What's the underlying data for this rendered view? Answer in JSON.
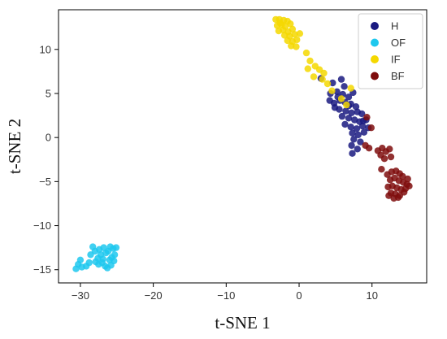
{
  "chart_data": {
    "type": "scatter",
    "title": "",
    "xlabel": "t-SNE 1",
    "ylabel": "t-SNE 2",
    "xlim": [
      -33,
      17.5
    ],
    "ylim": [
      -16.5,
      14.5
    ],
    "xticks": [
      -30,
      -20,
      -10,
      0,
      10
    ],
    "yticks": [
      -15,
      -10,
      -5,
      0,
      5,
      10
    ],
    "grid": false,
    "legend_position": "top-right",
    "series": [
      {
        "name": "H",
        "color": "#1a1a80",
        "points": [
          [
            3.0,
            6.7
          ],
          [
            4.6,
            6.2
          ],
          [
            5.8,
            6.6
          ],
          [
            6.2,
            5.8
          ],
          [
            4.3,
            5.0
          ],
          [
            5.2,
            5.2
          ],
          [
            6.0,
            4.9
          ],
          [
            6.8,
            4.6
          ],
          [
            7.4,
            5.1
          ],
          [
            4.2,
            4.2
          ],
          [
            4.8,
            3.9
          ],
          [
            5.6,
            4.2
          ],
          [
            6.3,
            4.0
          ],
          [
            7.1,
            3.8
          ],
          [
            7.8,
            3.5
          ],
          [
            4.9,
            3.4
          ],
          [
            5.5,
            3.2
          ],
          [
            6.4,
            3.0
          ],
          [
            7.2,
            2.8
          ],
          [
            8.0,
            2.9
          ],
          [
            8.6,
            2.7
          ],
          [
            5.9,
            2.4
          ],
          [
            6.8,
            2.2
          ],
          [
            7.6,
            2.0
          ],
          [
            8.3,
            1.8
          ],
          [
            9.2,
            2.0
          ],
          [
            6.3,
            1.5
          ],
          [
            7.1,
            1.2
          ],
          [
            7.9,
            1.0
          ],
          [
            8.7,
            1.3
          ],
          [
            7.3,
            0.5
          ],
          [
            8.1,
            0.3
          ],
          [
            8.9,
            0.6
          ],
          [
            7.5,
            -0.2
          ],
          [
            8.4,
            -0.5
          ],
          [
            7.2,
            -0.9
          ],
          [
            8.0,
            -1.3
          ],
          [
            7.3,
            -1.8
          ],
          [
            6.8,
            3.6
          ],
          [
            5.3,
            4.6
          ],
          [
            8.8,
            1.9
          ],
          [
            9.5,
            1.1
          ]
        ]
      },
      {
        "name": "OF",
        "color": "#1ec8ee",
        "points": [
          [
            -30.6,
            -14.9
          ],
          [
            -30.3,
            -14.4
          ],
          [
            -29.8,
            -14.7
          ],
          [
            -30.0,
            -13.9
          ],
          [
            -29.2,
            -14.6
          ],
          [
            -28.6,
            -13.3
          ],
          [
            -28.3,
            -12.4
          ],
          [
            -28.0,
            -12.9
          ],
          [
            -27.6,
            -13.7
          ],
          [
            -27.4,
            -12.7
          ],
          [
            -27.2,
            -13.3
          ],
          [
            -27.0,
            -14.2
          ],
          [
            -26.8,
            -12.5
          ],
          [
            -26.6,
            -14.6
          ],
          [
            -26.5,
            -13.1
          ],
          [
            -26.2,
            -12.9
          ],
          [
            -26.0,
            -13.9
          ],
          [
            -25.9,
            -12.4
          ],
          [
            -25.7,
            -13.6
          ],
          [
            -25.5,
            -12.6
          ],
          [
            -25.4,
            -14.0
          ],
          [
            -25.3,
            -13.3
          ],
          [
            -25.1,
            -12.5
          ],
          [
            -27.9,
            -14.1
          ],
          [
            -26.9,
            -13.8
          ],
          [
            -26.3,
            -14.8
          ],
          [
            -25.8,
            -14.5
          ],
          [
            -27.5,
            -14.4
          ],
          [
            -28.8,
            -14.2
          ]
        ]
      },
      {
        "name": "IF",
        "color": "#f5d800",
        "points": [
          [
            -3.2,
            13.4
          ],
          [
            -2.7,
            13.4
          ],
          [
            -2.1,
            13.3
          ],
          [
            -1.6,
            13.2
          ],
          [
            -3.0,
            12.7
          ],
          [
            -2.4,
            12.8
          ],
          [
            -1.9,
            12.6
          ],
          [
            -1.2,
            12.9
          ],
          [
            -2.8,
            12.1
          ],
          [
            -2.2,
            12.2
          ],
          [
            -1.5,
            12.0
          ],
          [
            -0.9,
            12.3
          ],
          [
            -2.0,
            11.6
          ],
          [
            -1.3,
            11.5
          ],
          [
            -0.6,
            11.7
          ],
          [
            -1.6,
            11.0
          ],
          [
            -0.9,
            10.9
          ],
          [
            -0.3,
            11.1
          ],
          [
            -1.1,
            10.4
          ],
          [
            -0.4,
            10.3
          ],
          [
            1.0,
            9.6
          ],
          [
            1.5,
            8.7
          ],
          [
            2.2,
            8.1
          ],
          [
            1.2,
            7.8
          ],
          [
            2.8,
            7.7
          ],
          [
            3.4,
            7.3
          ],
          [
            2.0,
            6.9
          ],
          [
            3.2,
            6.6
          ],
          [
            3.9,
            6.1
          ],
          [
            4.5,
            5.3
          ],
          [
            5.8,
            4.4
          ],
          [
            6.5,
            3.7
          ],
          [
            7.1,
            5.6
          ],
          [
            0.1,
            11.8
          ],
          [
            -2.6,
            13.0
          ]
        ]
      },
      {
        "name": "BF",
        "color": "#7f0d0d",
        "points": [
          [
            9.3,
            2.3
          ],
          [
            9.9,
            1.1
          ],
          [
            9.1,
            -0.9
          ],
          [
            9.6,
            -1.2
          ],
          [
            10.8,
            -1.5
          ],
          [
            11.4,
            -1.2
          ],
          [
            11.9,
            -1.6
          ],
          [
            12.4,
            -1.3
          ],
          [
            11.2,
            -2.0
          ],
          [
            11.7,
            -2.4
          ],
          [
            12.6,
            -2.2
          ],
          [
            11.3,
            -3.6
          ],
          [
            12.1,
            -4.2
          ],
          [
            12.7,
            -3.9
          ],
          [
            13.3,
            -3.8
          ],
          [
            13.8,
            -4.1
          ],
          [
            14.2,
            -4.4
          ],
          [
            12.5,
            -4.8
          ],
          [
            13.1,
            -4.6
          ],
          [
            13.7,
            -4.9
          ],
          [
            14.3,
            -5.1
          ],
          [
            14.8,
            -5.3
          ],
          [
            12.2,
            -5.6
          ],
          [
            12.8,
            -5.5
          ],
          [
            13.4,
            -5.7
          ],
          [
            14.0,
            -5.9
          ],
          [
            14.6,
            -5.8
          ],
          [
            15.1,
            -5.5
          ],
          [
            12.6,
            -6.3
          ],
          [
            13.2,
            -6.4
          ],
          [
            13.8,
            -6.6
          ],
          [
            14.4,
            -6.2
          ],
          [
            13.0,
            -6.9
          ],
          [
            13.6,
            -6.8
          ],
          [
            12.3,
            -6.6
          ],
          [
            14.9,
            -4.7
          ]
        ]
      }
    ]
  }
}
